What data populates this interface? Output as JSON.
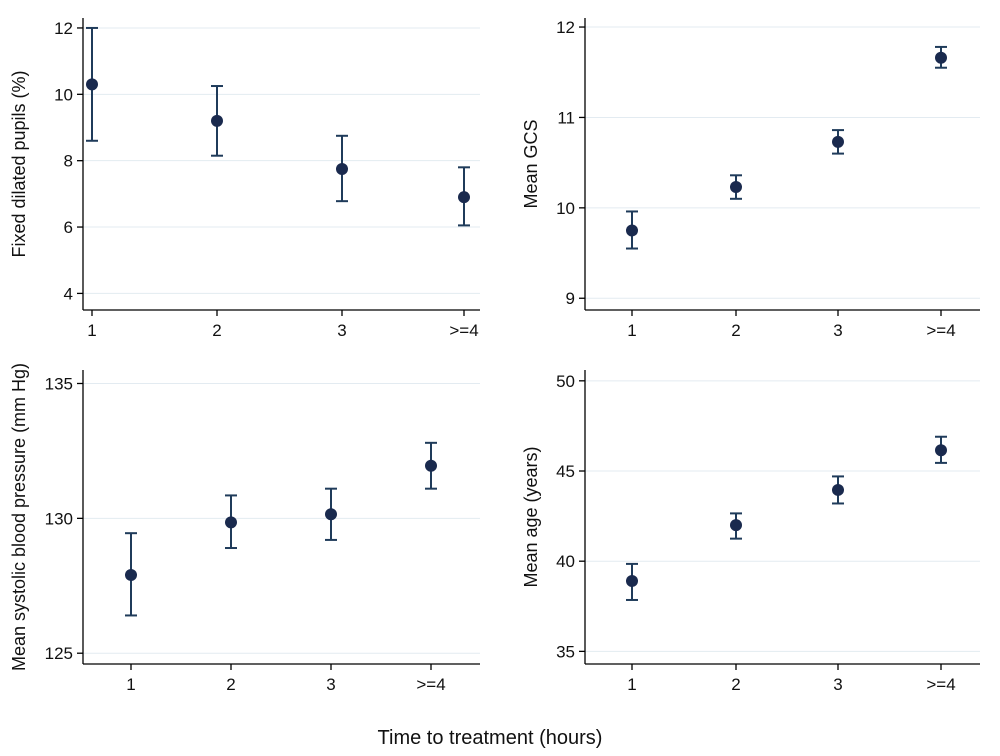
{
  "figure": {
    "shared_xlabel": "Time to treatment (hours)"
  },
  "chart_data": [
    {
      "type": "scatter",
      "error_bars": true,
      "categories": [
        "1",
        "2",
        "3",
        ">=4"
      ],
      "values": [
        10.3,
        9.2,
        7.75,
        6.9
      ],
      "ci_low": [
        8.6,
        8.15,
        6.78,
        6.05
      ],
      "ci_high": [
        12.0,
        10.25,
        8.75,
        7.8
      ],
      "ylabel": "Fixed dilated pupils (%)",
      "yticks": [
        4,
        6,
        8,
        10,
        12
      ],
      "ylim": [
        3.5,
        12.3
      ],
      "grid": true
    },
    {
      "type": "scatter",
      "error_bars": true,
      "categories": [
        "1",
        "2",
        "3",
        ">=4"
      ],
      "values": [
        9.75,
        10.23,
        10.73,
        11.66
      ],
      "ci_low": [
        9.55,
        10.1,
        10.6,
        11.55
      ],
      "ci_high": [
        9.96,
        10.36,
        10.86,
        11.78
      ],
      "ylabel": "Mean GCS",
      "yticks": [
        9,
        10,
        11,
        12
      ],
      "ylim": [
        8.87,
        12.1
      ],
      "grid": true
    },
    {
      "type": "scatter",
      "error_bars": true,
      "categories": [
        "1",
        "2",
        "3",
        ">=4"
      ],
      "values": [
        127.9,
        129.85,
        130.15,
        131.95
      ],
      "ci_low": [
        126.4,
        128.9,
        129.2,
        131.1
      ],
      "ci_high": [
        129.45,
        130.85,
        131.1,
        132.8
      ],
      "ylabel": "Mean systolic blood pressure (mm Hg)",
      "yticks": [
        125,
        130,
        135
      ],
      "ylim": [
        124.6,
        135.5
      ],
      "grid": true
    },
    {
      "type": "scatter",
      "error_bars": true,
      "categories": [
        "1",
        "2",
        "3",
        ">=4"
      ],
      "values": [
        38.9,
        42.0,
        43.95,
        46.15
      ],
      "ci_low": [
        37.85,
        41.25,
        43.2,
        45.45
      ],
      "ci_high": [
        39.85,
        42.65,
        44.7,
        46.9
      ],
      "ylabel": "Mean age (years)",
      "yticks": [
        35,
        40,
        45,
        50
      ],
      "ylim": [
        34.3,
        50.6
      ],
      "grid": true
    }
  ],
  "style": {
    "marker_color": "#1a2a4e",
    "errorbar_color": "#1f3b5a",
    "grid_color": "#e3ebf1",
    "axis_color": "#000000"
  }
}
